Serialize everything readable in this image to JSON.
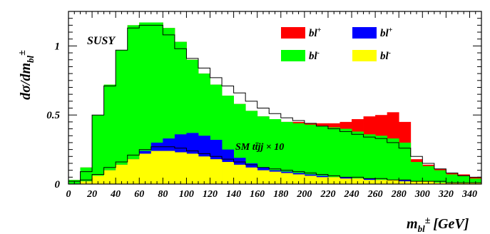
{
  "chart_data": {
    "type": "histogram",
    "title": "",
    "xlabel": "m",
    "xlabel_sub": "bl",
    "xlabel_sup": "±",
    "xlabel_unit": "[GeV]",
    "ylabel": "dσ/dm",
    "ylabel_sub": "bl",
    "ylabel_sup": "±",
    "xlim": [
      0,
      350
    ],
    "ylim": [
      0,
      1.25
    ],
    "x_ticks": [
      0,
      20,
      40,
      60,
      80,
      100,
      120,
      140,
      160,
      180,
      200,
      220,
      240,
      260,
      280,
      300,
      320,
      340
    ],
    "y_ticks": [
      0,
      0.5,
      1
    ],
    "y_tick_labels": [
      "0",
      "0.5",
      "1"
    ],
    "bin_width": 10,
    "bin_edges_start": 0,
    "annotation_susy": "SUSY",
    "annotation_sm": "SM tt̄jj × 10",
    "legend": [
      {
        "label": "bl",
        "sup": "+",
        "color": "#ff0000"
      },
      {
        "label": "bl",
        "sup": "+",
        "color": "#0000ff"
      },
      {
        "label": "bl",
        "sup": "-",
        "color": "#00ff00"
      },
      {
        "label": "bl",
        "sup": "-",
        "color": "#ffff00"
      }
    ],
    "susy_series": [
      {
        "name": "red",
        "color": "#ff0000",
        "values": [
          0.03,
          0.12,
          0.5,
          0.72,
          0.97,
          1.15,
          1.17,
          1.17,
          1.13,
          1.03,
          0.9,
          0.8,
          0.72,
          0.64,
          0.58,
          0.53,
          0.49,
          0.47,
          0.45,
          0.45,
          0.44,
          0.44,
          0.44,
          0.45,
          0.47,
          0.49,
          0.5,
          0.52,
          0.45,
          0.18,
          0.14,
          0.11,
          0.08,
          0.07,
          0.05
        ]
      },
      {
        "name": "green",
        "color": "#00ff00",
        "values": [
          0.03,
          0.12,
          0.5,
          0.72,
          0.97,
          1.15,
          1.17,
          1.17,
          1.13,
          1.03,
          0.9,
          0.8,
          0.72,
          0.64,
          0.58,
          0.53,
          0.49,
          0.47,
          0.45,
          0.44,
          0.43,
          0.42,
          0.41,
          0.4,
          0.38,
          0.36,
          0.35,
          0.33,
          0.3,
          0.16,
          0.13,
          0.1,
          0.07,
          0.06,
          0.04
        ]
      },
      {
        "name": "blue",
        "color": "#0000ff",
        "values": [
          0.0,
          0.02,
          0.06,
          0.1,
          0.14,
          0.18,
          0.24,
          0.3,
          0.33,
          0.36,
          0.37,
          0.35,
          0.32,
          0.25,
          0.19,
          0.15,
          0.12,
          0.1,
          0.09,
          0.08,
          0.07,
          0.06,
          0.05,
          0.05,
          0.04,
          0.04,
          0.03,
          0.03,
          0.03,
          0.02,
          0.02,
          0.01,
          0.01,
          0.01,
          0.01
        ]
      },
      {
        "name": "yellow",
        "color": "#ffff00",
        "values": [
          0.0,
          0.02,
          0.06,
          0.1,
          0.14,
          0.18,
          0.22,
          0.24,
          0.24,
          0.23,
          0.22,
          0.2,
          0.18,
          0.16,
          0.14,
          0.12,
          0.1,
          0.09,
          0.08,
          0.07,
          0.06,
          0.05,
          0.05,
          0.04,
          0.04,
          0.03,
          0.03,
          0.03,
          0.02,
          0.02,
          0.02,
          0.01,
          0.01,
          0.01,
          0.01
        ]
      }
    ],
    "sm_series": [
      {
        "name": "outline-upper",
        "values": [
          0.02,
          0.09,
          0.5,
          0.71,
          0.97,
          1.13,
          1.15,
          1.15,
          1.08,
          0.98,
          0.91,
          0.84,
          0.77,
          0.71,
          0.66,
          0.6,
          0.55,
          0.51,
          0.48,
          0.46,
          0.44,
          0.42,
          0.4,
          0.38,
          0.36,
          0.34,
          0.33,
          0.3,
          0.26,
          0.2,
          0.15,
          0.11,
          0.08,
          0.06,
          0.05
        ]
      },
      {
        "name": "outline-lower",
        "values": [
          0.0,
          0.03,
          0.07,
          0.12,
          0.16,
          0.21,
          0.25,
          0.27,
          0.27,
          0.26,
          0.24,
          0.22,
          0.2,
          0.18,
          0.16,
          0.14,
          0.12,
          0.11,
          0.1,
          0.09,
          0.08,
          0.07,
          0.06,
          0.05,
          0.05,
          0.04,
          0.04,
          0.03,
          0.03,
          0.02,
          0.02,
          0.02,
          0.01,
          0.01,
          0.01
        ]
      }
    ]
  }
}
